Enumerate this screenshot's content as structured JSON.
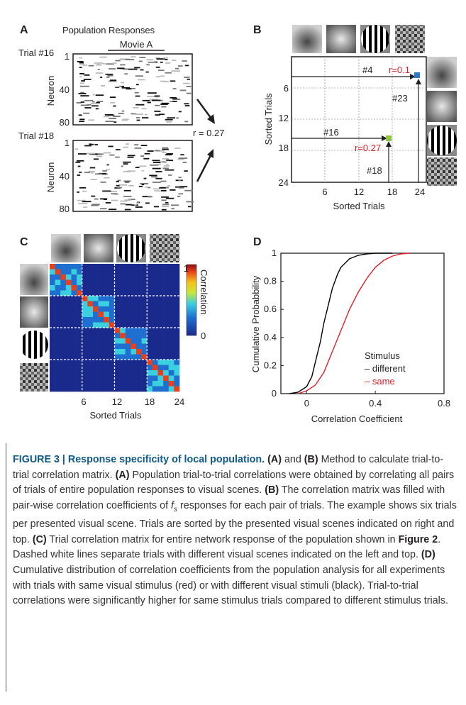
{
  "panels": {
    "A": {
      "label": "A",
      "title": "Population Responses",
      "movie_label": "Movie A",
      "trial1": "Trial #16",
      "trial2": "Trial #18",
      "ylabel": "Neuron",
      "yticks": [
        "1",
        "40",
        "80"
      ],
      "r_value": "r = 0.27"
    },
    "B": {
      "label": "B",
      "xlabel": "Sorted Trials",
      "ylabel": "Sorted Trials",
      "xticks": [
        "6",
        "12",
        "18",
        "24"
      ],
      "yticks": [
        "6",
        "12",
        "18",
        "24"
      ],
      "ann_4": "#4",
      "ann_23": "#23",
      "ann_16": "#16",
      "ann_18": "#18",
      "r_high": "r=0.1",
      "r_low": "r=0.27"
    },
    "C": {
      "label": "C",
      "xlabel": "Sorted Trials",
      "xticks": [
        "6",
        "12",
        "18",
        "24"
      ],
      "colorbar_label": "Correlation",
      "colorbar_ticks": [
        "1",
        "0"
      ]
    },
    "D": {
      "label": "D",
      "xlabel": "Correlation Coefficient",
      "ylabel": "Cumulative Probabbility",
      "legend_title": "Stimulus",
      "legend_items": [
        "– different",
        "– same"
      ]
    }
  },
  "chart_data": {
    "type": "line",
    "xlabel": "Correlation Coefficient",
    "ylabel": "Cumulative Probabbility",
    "xlim": [
      -0.15,
      0.8
    ],
    "ylim": [
      0,
      1
    ],
    "xticks": [
      "0",
      "0.4",
      "0.8"
    ],
    "yticks": [
      "0",
      "0.2",
      "0.4",
      "0.6",
      "0.8",
      "1"
    ],
    "legend_title": "Stimulus",
    "legend_position": "lower-right",
    "series": [
      {
        "name": "different",
        "color": "#000000",
        "x": [
          -0.1,
          -0.05,
          0.0,
          0.03,
          0.05,
          0.08,
          0.1,
          0.13,
          0.15,
          0.18,
          0.2,
          0.25,
          0.3,
          0.35,
          0.4,
          0.5
        ],
        "y": [
          0.0,
          0.01,
          0.05,
          0.12,
          0.22,
          0.37,
          0.5,
          0.65,
          0.75,
          0.85,
          0.9,
          0.96,
          0.985,
          0.995,
          1.0,
          1.0
        ]
      },
      {
        "name": "same",
        "color": "#e0202a",
        "x": [
          -0.05,
          0.0,
          0.05,
          0.1,
          0.15,
          0.2,
          0.25,
          0.3,
          0.35,
          0.4,
          0.45,
          0.5,
          0.55,
          0.6
        ],
        "y": [
          0.0,
          0.02,
          0.06,
          0.15,
          0.3,
          0.45,
          0.6,
          0.72,
          0.82,
          0.9,
          0.95,
          0.98,
          0.995,
          1.0
        ]
      }
    ]
  },
  "caption": {
    "title": "FIGURE 3 | Response specificity of local population.",
    "t1": " (A)",
    "t2": " and ",
    "t3": "(B)",
    "t4": " Method to calculate trial-to-trial correlation matrix. ",
    "t5": "(A)",
    "t6": " Population trial-to-trial correlations were obtained by correlating all pairs of trials of entire population responses to visual scenes. ",
    "t7": "(B)",
    "t8": " The correlation matrix was filled with pair-wise correlation coefficients of ",
    "t9": "f",
    "t9s": "s",
    "t10": " responses for each pair of trials. The example shows six trials per presented visual scene. Trials are sorted by the presented visual scenes indicated on right and top. ",
    "t11": "(C)",
    "t12": " Trial correlation matrix for entire network response of the population shown in ",
    "t13": "Figure 2",
    "t14": ". Dashed white lines separate trials with different visual scenes indicated on the left and top. ",
    "t15": "(D)",
    "t16": " Cumulative distribution of correlation coefficients from the population analysis for all experiments with trials with same visual stimulus (red) or with different visual stimuli (black). Trial-to-trial correlations were significantly higher for same stimulus trials compared to different stimulus trials."
  }
}
